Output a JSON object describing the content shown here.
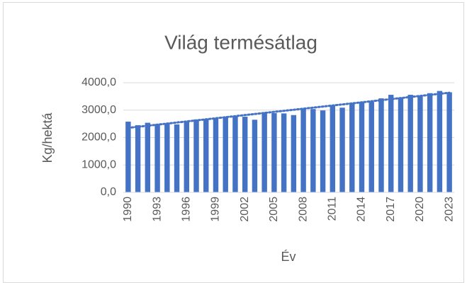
{
  "chart_data": {
    "type": "bar",
    "title": "Világ termésátlag",
    "y_label": "Kg/hektá",
    "x_label": "Év",
    "categories": [
      "1990",
      null,
      null,
      "1993",
      null,
      null,
      "1996",
      null,
      null,
      "1999",
      null,
      null,
      "2002",
      null,
      null,
      "2005",
      null,
      null,
      "2008",
      null,
      null,
      "2011",
      null,
      null,
      "2014",
      null,
      null,
      "2017",
      null,
      null,
      "2020",
      null,
      null,
      "2023"
    ],
    "values": [
      2580,
      2450,
      2540,
      2490,
      2520,
      2480,
      2570,
      2660,
      2680,
      2710,
      2740,
      2770,
      2760,
      2650,
      2930,
      2890,
      2880,
      2820,
      3060,
      3040,
      2990,
      3160,
      3090,
      3260,
      3300,
      3300,
      3430,
      3560,
      3460,
      3560,
      3530,
      3620,
      3700,
      3650
    ],
    "color": "#4472c4",
    "ylim": [
      0,
      4000
    ],
    "yticks": [
      {
        "value": 0,
        "label": "0,0"
      },
      {
        "value": 1000,
        "label": "1000,0"
      },
      {
        "value": 2000,
        "label": "2000,0"
      },
      {
        "value": 3000,
        "label": "3000,0"
      },
      {
        "value": 4000,
        "label": "4000,0"
      }
    ],
    "grid": true,
    "trendline": "linear"
  }
}
